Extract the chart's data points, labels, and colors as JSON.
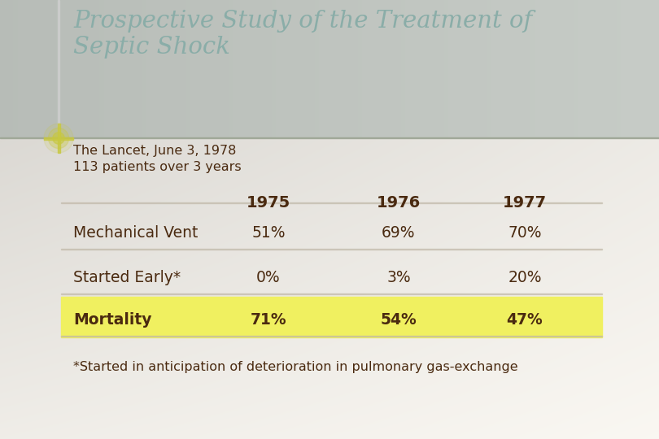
{
  "title_line1": "Prospective Study of the Treatment of",
  "title_line2": "Septic Shock",
  "subtitle_line1": "The Lancet, June 3, 1978",
  "subtitle_line2": "113 patients over 3 years",
  "col_headers": [
    "1975",
    "1976",
    "1977"
  ],
  "rows": [
    {
      "label": "Mechanical Vent",
      "values": [
        "51%",
        "69%",
        "70%"
      ],
      "bold": false,
      "highlight": false
    },
    {
      "label": "Started Early*",
      "values": [
        "0%",
        "3%",
        "20%"
      ],
      "bold": false,
      "highlight": false
    },
    {
      "label": "Mortality",
      "values": [
        "71%",
        "54%",
        "47%"
      ],
      "bold": true,
      "highlight": true
    }
  ],
  "footnote": "*Started in anticipation of deterioration in pulmonary gas-exchange",
  "title_color": "#8aada8",
  "text_color": "#4a2a10",
  "highlight_color": "#f0f060",
  "accent_color": "#c8c840",
  "table_line_color": "#c0b8a8"
}
